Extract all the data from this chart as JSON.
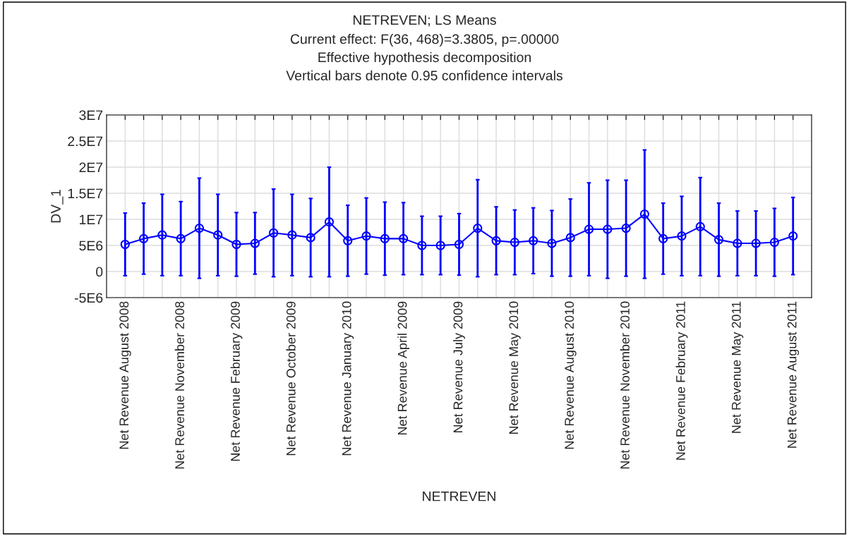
{
  "chart_data": {
    "type": "line",
    "title": "NETREVEN; LS Means",
    "subtitle": "Current effect: F(36, 468)=3.3805, p=.00000\nEffective hypothesis decomposition\nVertical bars denote 0.95 confidence intervals",
    "xlabel": "NETREVEN",
    "ylabel": "DV_1",
    "categories": [
      "Net Revenue August 2008",
      null,
      null,
      "Net Revenue November 2008",
      null,
      null,
      "Net Revenue February 2009",
      null,
      null,
      "Net Revenue October 2009",
      null,
      null,
      "Net Revenue January 2010",
      null,
      null,
      "Net Revenue April 2009",
      null,
      null,
      "Net Revenue July 2009",
      null,
      null,
      "Net Revenue May 2010",
      null,
      null,
      "Net Revenue August 2010",
      null,
      null,
      "Net Revenue November 2010",
      null,
      null,
      "Net Revenue February 2011",
      null,
      null,
      "Net Revenue May 2011",
      null,
      null,
      "Net Revenue August 2011"
    ],
    "series": [
      {
        "color": "#0000ff",
        "values": [
          5200000,
          6300000,
          7000000,
          6300000,
          8300000,
          7000000,
          5200000,
          5400000,
          7400000,
          7000000,
          6500000,
          9500000,
          5900000,
          6800000,
          6300000,
          6300000,
          5000000,
          5000000,
          5200000,
          8300000,
          5900000,
          5600000,
          5900000,
          5400000,
          6500000,
          8100000,
          8100000,
          8300000,
          11000000,
          6300000,
          6800000,
          8600000,
          6100000,
          5400000,
          5400000,
          5600000,
          6800000
        ],
        "errors": [
          6000000,
          6800000,
          7800000,
          7100000,
          9600000,
          7800000,
          6100000,
          5900000,
          8400000,
          7800000,
          7500000,
          10500000,
          6800000,
          7300000,
          7000000,
          6900000,
          5600000,
          5600000,
          5900000,
          9300000,
          6500000,
          6200000,
          6300000,
          6300000,
          7400000,
          8900000,
          9400000,
          9200000,
          12300000,
          6800000,
          7600000,
          9400000,
          7000000,
          6200000,
          6200000,
          6500000,
          7400000
        ]
      }
    ],
    "ylim": [
      -5000000,
      30000000
    ],
    "yticks": [
      {
        "value": -5000000,
        "label": "-5E6"
      },
      {
        "value": 0,
        "label": "0"
      },
      {
        "value": 5000000,
        "label": "5E6"
      },
      {
        "value": 10000000,
        "label": "1E7"
      },
      {
        "value": 15000000,
        "label": "1.5E7"
      },
      {
        "value": 20000000,
        "label": "2E7"
      },
      {
        "value": 25000000,
        "label": "2.5E7"
      },
      {
        "value": 30000000,
        "label": "3E7"
      }
    ],
    "grid": true,
    "marker": "circle",
    "line_style": "solid",
    "legend": false
  }
}
